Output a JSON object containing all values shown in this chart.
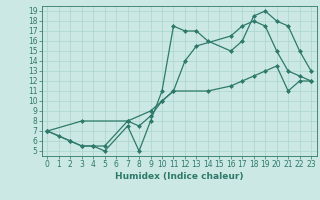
{
  "xlabel": "Humidex (Indice chaleur)",
  "bg_color": "#cce8e4",
  "line_color": "#2d7a6a",
  "grid_color": "#aad4ce",
  "xlim": [
    -0.5,
    23.5
  ],
  "ylim": [
    4.5,
    19.5
  ],
  "xticks": [
    0,
    1,
    2,
    3,
    4,
    5,
    6,
    7,
    8,
    9,
    10,
    11,
    12,
    13,
    14,
    15,
    16,
    17,
    18,
    19,
    20,
    21,
    22,
    23
  ],
  "yticks": [
    5,
    6,
    7,
    8,
    9,
    10,
    11,
    12,
    13,
    14,
    15,
    16,
    17,
    18,
    19
  ],
  "line1_x": [
    0,
    1,
    2,
    3,
    4,
    5,
    7,
    8,
    9,
    10,
    11,
    12,
    13,
    14,
    16,
    17,
    18,
    19,
    20,
    21,
    22,
    23
  ],
  "line1_y": [
    7,
    6.5,
    6,
    5.5,
    5.5,
    5,
    7.5,
    5,
    8,
    11,
    17.5,
    17,
    17,
    16,
    15,
    16,
    18.5,
    19,
    18,
    17.5,
    15,
    13
  ],
  "line2_x": [
    0,
    2,
    3,
    4,
    5,
    7,
    8,
    9,
    10,
    11,
    12,
    13,
    16,
    17,
    18,
    19,
    20,
    21,
    22,
    23
  ],
  "line2_y": [
    7,
    6,
    5.5,
    5.5,
    5.5,
    8,
    7.5,
    8.5,
    10,
    11,
    14,
    15.5,
    16.5,
    17.5,
    18,
    17.5,
    15,
    13,
    12.5,
    12
  ],
  "line3_x": [
    0,
    3,
    7,
    9,
    10,
    11,
    14,
    16,
    17,
    18,
    19,
    20,
    21,
    22,
    23
  ],
  "line3_y": [
    7,
    8,
    8,
    9,
    10,
    11,
    11,
    11.5,
    12,
    12.5,
    13,
    13.5,
    11,
    12,
    12
  ],
  "marker": "D",
  "markersize": 2,
  "linewidth": 0.9,
  "tick_fontsize": 5.5,
  "label_fontsize": 6.5
}
